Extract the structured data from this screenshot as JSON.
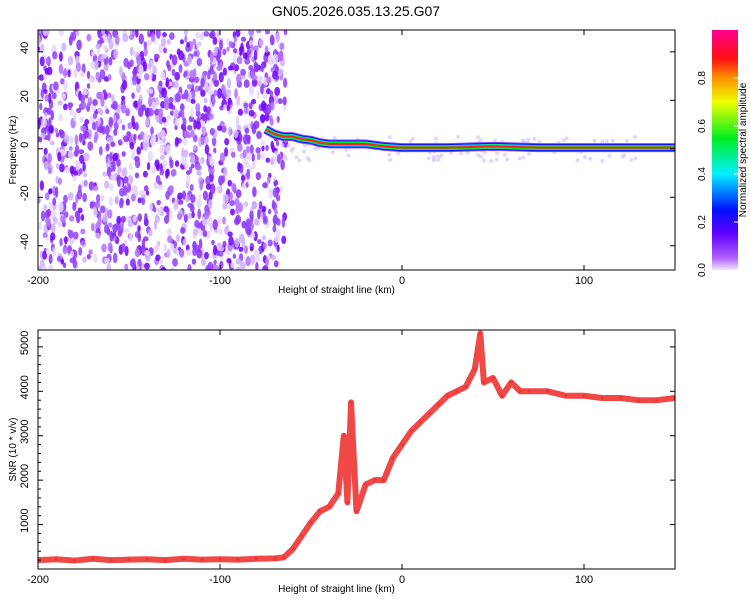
{
  "title": "GN05.2026.035.13.25.G07",
  "chart_data": [
    {
      "type": "heatmap",
      "xlabel": "Height of straight line (km)",
      "ylabel": "Frequency (Hz)",
      "xlim": [
        -200,
        150
      ],
      "ylim": [
        -50,
        49
      ],
      "xticks": [
        -200,
        -100,
        0,
        100
      ],
      "yticks": [
        -40,
        -20,
        0,
        20,
        40
      ],
      "colorbar": {
        "label": "Normalized spectral amplitude",
        "range": [
          0,
          1
        ],
        "ticks": [
          "0.0",
          "0.2",
          "0.4",
          "0.6",
          "0.8"
        ],
        "colors": [
          "#e8d8f8",
          "#8000ff",
          "#0000ff",
          "#00ffff",
          "#00ff00",
          "#ffff00",
          "#ff8000",
          "#ff0000",
          "#ff0080"
        ]
      },
      "noise_region_x": [
        -200,
        -70
      ],
      "ridge": {
        "x": [
          -75,
          -70,
          -65,
          -60,
          -55,
          -50,
          -45,
          -40,
          -35,
          -30,
          -20,
          -10,
          0,
          25,
          50,
          75,
          100,
          125,
          150
        ],
        "freq": [
          8,
          6,
          5,
          5,
          4,
          3.5,
          2.5,
          2,
          2,
          2,
          2,
          1,
          0.5,
          0.5,
          1,
          0.5,
          0.5,
          0.5,
          0.5
        ]
      }
    },
    {
      "type": "line",
      "xlabel": "Height of straight line (km)",
      "ylabel": "SNR (10 * v/v)",
      "xlim": [
        -200,
        150
      ],
      "ylim": [
        0,
        5380
      ],
      "xticks": [
        -200,
        -100,
        0,
        100
      ],
      "yticks": [
        1000,
        2000,
        3000,
        4000,
        5000
      ],
      "color": "#ee3333",
      "x": [
        -200,
        -190,
        -180,
        -170,
        -160,
        -150,
        -140,
        -130,
        -120,
        -110,
        -100,
        -90,
        -80,
        -70,
        -65,
        -60,
        -55,
        -50,
        -45,
        -40,
        -35,
        -32,
        -30,
        -28,
        -25,
        -20,
        -15,
        -10,
        -5,
        0,
        5,
        10,
        15,
        20,
        25,
        30,
        35,
        40,
        43,
        45,
        50,
        55,
        60,
        65,
        70,
        80,
        90,
        100,
        110,
        120,
        130,
        140,
        150
      ],
      "y": [
        200,
        220,
        190,
        230,
        200,
        210,
        220,
        200,
        230,
        210,
        220,
        210,
        230,
        240,
        260,
        450,
        750,
        1050,
        1300,
        1400,
        1700,
        3000,
        1500,
        3750,
        1300,
        1900,
        2000,
        2000,
        2500,
        2800,
        3100,
        3300,
        3500,
        3700,
        3900,
        4000,
        4100,
        4500,
        5300,
        4200,
        4300,
        3900,
        4200,
        4000,
        4000,
        4000,
        3900,
        3900,
        3850,
        3850,
        3800,
        3800,
        3850
      ]
    }
  ]
}
